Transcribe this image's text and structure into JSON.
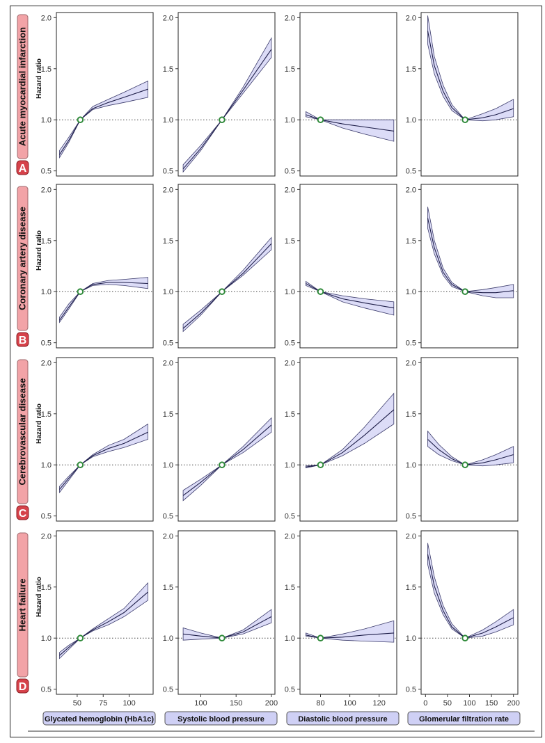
{
  "chart_data": {
    "type": "line",
    "ylabel": "Hazard ratio",
    "ylim": [
      0.45,
      2.05
    ],
    "yticks": [
      "2.0",
      "1.5",
      "1.0",
      "0.5"
    ],
    "ytick_values": [
      2.0,
      1.5,
      1.0,
      0.5
    ],
    "reference_hazard_ratio": 1.0,
    "columns": [
      {
        "xlabel": "Glycated hemoglobin (HbA1c)",
        "xlim": [
          30,
          123
        ],
        "xticks": [
          "50",
          "75",
          "100"
        ],
        "xtick_values": [
          50,
          75,
          100
        ],
        "reference_x": 53
      },
      {
        "xlabel": "Systolic blood pressure",
        "xlim": [
          68,
          205
        ],
        "xticks": [
          "100",
          "150",
          "200"
        ],
        "xtick_values": [
          100,
          150,
          200
        ],
        "reference_x": 130
      },
      {
        "xlabel": "Diastolic blood pressure",
        "xlim": [
          66,
          132
        ],
        "xticks": [
          "80",
          "100",
          "120"
        ],
        "xtick_values": [
          80,
          100,
          120
        ],
        "reference_x": 80
      },
      {
        "xlabel": "Glomerular filtration rate",
        "xlim": [
          -10,
          210
        ],
        "xticks": [
          "0",
          "50",
          "100",
          "150",
          "200"
        ],
        "xtick_values": [
          0,
          50,
          100,
          150,
          200
        ],
        "reference_x": 90
      }
    ],
    "rows": [
      {
        "letter": "A",
        "title": "Acute myocardial infarction",
        "panels": [
          {
            "x": [
              33,
              42,
              53,
              65,
              80,
              95,
              118
            ],
            "y": [
              0.66,
              0.8,
              1.0,
              1.11,
              1.17,
              1.22,
              1.3
            ],
            "lower": [
              0.63,
              0.78,
              1.0,
              1.1,
              1.14,
              1.17,
              1.22
            ],
            "upper": [
              0.7,
              0.83,
              1.0,
              1.13,
              1.2,
              1.27,
              1.38
            ]
          },
          {
            "x": [
              75,
              100,
              130,
              160,
              200
            ],
            "y": [
              0.52,
              0.72,
              1.0,
              1.29,
              1.69
            ],
            "lower": [
              0.49,
              0.7,
              1.0,
              1.26,
              1.61
            ],
            "upper": [
              0.56,
              0.75,
              1.0,
              1.32,
              1.8
            ]
          },
          {
            "x": [
              70,
              80,
              95,
              110,
              130
            ],
            "y": [
              1.05,
              1.0,
              0.96,
              0.93,
              0.89
            ],
            "lower": [
              1.03,
              1.0,
              0.92,
              0.86,
              0.79
            ],
            "upper": [
              1.08,
              1.0,
              1.0,
              1.0,
              1.0
            ]
          },
          {
            "x": [
              5,
              20,
              40,
              60,
              90,
              130,
              160,
              200
            ],
            "y": [
              1.87,
              1.53,
              1.28,
              1.12,
              1.0,
              1.02,
              1.05,
              1.11
            ],
            "lower": [
              1.74,
              1.45,
              1.23,
              1.09,
              1.0,
              0.99,
              1.0,
              1.03
            ],
            "upper": [
              2.02,
              1.62,
              1.34,
              1.15,
              1.0,
              1.06,
              1.11,
              1.2
            ]
          }
        ]
      },
      {
        "letter": "B",
        "title": "Coronary artery disease",
        "panels": [
          {
            "x": [
              33,
              42,
              53,
              65,
              80,
              95,
              118
            ],
            "y": [
              0.72,
              0.85,
              1.0,
              1.07,
              1.09,
              1.09,
              1.08
            ],
            "lower": [
              0.7,
              0.83,
              1.0,
              1.06,
              1.07,
              1.06,
              1.03
            ],
            "upper": [
              0.75,
              0.88,
              1.0,
              1.08,
              1.11,
              1.12,
              1.14
            ]
          },
          {
            "x": [
              75,
              100,
              130,
              160,
              200
            ],
            "y": [
              0.64,
              0.79,
              1.0,
              1.18,
              1.47
            ],
            "lower": [
              0.61,
              0.77,
              1.0,
              1.16,
              1.41
            ],
            "upper": [
              0.68,
              0.82,
              1.0,
              1.21,
              1.53
            ]
          },
          {
            "x": [
              70,
              80,
              95,
              110,
              130
            ],
            "y": [
              1.08,
              1.0,
              0.93,
              0.89,
              0.84
            ],
            "lower": [
              1.06,
              1.0,
              0.9,
              0.84,
              0.77
            ],
            "upper": [
              1.1,
              1.0,
              0.96,
              0.93,
              0.9
            ]
          },
          {
            "x": [
              5,
              20,
              40,
              60,
              90,
              130,
              160,
              200
            ],
            "y": [
              1.72,
              1.43,
              1.19,
              1.07,
              1.0,
              0.99,
              0.99,
              1.01
            ],
            "lower": [
              1.62,
              1.37,
              1.16,
              1.05,
              1.0,
              0.96,
              0.94,
              0.94
            ],
            "upper": [
              1.83,
              1.5,
              1.23,
              1.09,
              1.0,
              1.02,
              1.04,
              1.07
            ]
          }
        ]
      },
      {
        "letter": "C",
        "title": "Cerebrovascular disease",
        "panels": [
          {
            "x": [
              33,
              42,
              53,
              65,
              80,
              95,
              118
            ],
            "y": [
              0.76,
              0.87,
              1.0,
              1.09,
              1.16,
              1.21,
              1.32
            ],
            "lower": [
              0.73,
              0.85,
              1.0,
              1.08,
              1.13,
              1.17,
              1.25
            ],
            "upper": [
              0.79,
              0.89,
              1.0,
              1.1,
              1.19,
              1.25,
              1.4
            ]
          },
          {
            "x": [
              75,
              100,
              130,
              160,
              200
            ],
            "y": [
              0.7,
              0.83,
              1.0,
              1.15,
              1.39
            ],
            "lower": [
              0.65,
              0.8,
              1.0,
              1.12,
              1.32
            ],
            "upper": [
              0.75,
              0.86,
              1.0,
              1.18,
              1.46
            ]
          },
          {
            "x": [
              70,
              80,
              95,
              110,
              130
            ],
            "y": [
              0.98,
              1.0,
              1.12,
              1.29,
              1.54
            ],
            "lower": [
              0.97,
              1.0,
              1.09,
              1.21,
              1.4
            ],
            "upper": [
              0.99,
              1.0,
              1.15,
              1.37,
              1.7
            ]
          },
          {
            "x": [
              5,
              30,
              60,
              90,
              130,
              160,
              200
            ],
            "y": [
              1.25,
              1.15,
              1.06,
              1.0,
              1.02,
              1.05,
              1.1
            ],
            "lower": [
              1.18,
              1.1,
              1.04,
              1.0,
              0.99,
              1.0,
              1.02
            ],
            "upper": [
              1.33,
              1.2,
              1.08,
              1.0,
              1.05,
              1.1,
              1.18
            ]
          }
        ]
      },
      {
        "letter": "D",
        "title": "Heart failure",
        "panels": [
          {
            "x": [
              33,
              42,
              53,
              65,
              80,
              95,
              118
            ],
            "y": [
              0.83,
              0.91,
              1.0,
              1.08,
              1.16,
              1.25,
              1.45
            ],
            "lower": [
              0.8,
              0.89,
              1.0,
              1.07,
              1.13,
              1.21,
              1.37
            ],
            "upper": [
              0.86,
              0.93,
              1.0,
              1.09,
              1.19,
              1.29,
              1.54
            ]
          },
          {
            "x": [
              75,
              100,
              130,
              160,
              200
            ],
            "y": [
              1.04,
              1.02,
              1.0,
              1.06,
              1.21
            ],
            "lower": [
              0.98,
              0.99,
              1.0,
              1.04,
              1.15
            ],
            "upper": [
              1.1,
              1.05,
              1.0,
              1.08,
              1.28
            ]
          },
          {
            "x": [
              70,
              80,
              95,
              110,
              130
            ],
            "y": [
              1.03,
              1.0,
              1.01,
              1.03,
              1.05
            ],
            "lower": [
              1.02,
              1.0,
              0.98,
              0.97,
              0.96
            ],
            "upper": [
              1.05,
              1.0,
              1.04,
              1.09,
              1.17
            ]
          },
          {
            "x": [
              5,
              20,
              40,
              60,
              90,
              130,
              160,
              200
            ],
            "y": [
              1.82,
              1.51,
              1.27,
              1.11,
              1.0,
              1.05,
              1.11,
              1.2
            ],
            "lower": [
              1.72,
              1.44,
              1.23,
              1.09,
              1.0,
              1.02,
              1.06,
              1.13
            ],
            "upper": [
              1.93,
              1.6,
              1.32,
              1.14,
              1.0,
              1.08,
              1.16,
              1.28
            ]
          }
        ]
      }
    ],
    "colors": {
      "band_fill": "#dcdcf7",
      "line": "#1e1e48",
      "reference_point": "#2f8a3a",
      "row_label_fill": "#f2a3a7",
      "letter_badge_fill": "#d6424a",
      "xlabel_fill": "#cfd0f5"
    }
  }
}
